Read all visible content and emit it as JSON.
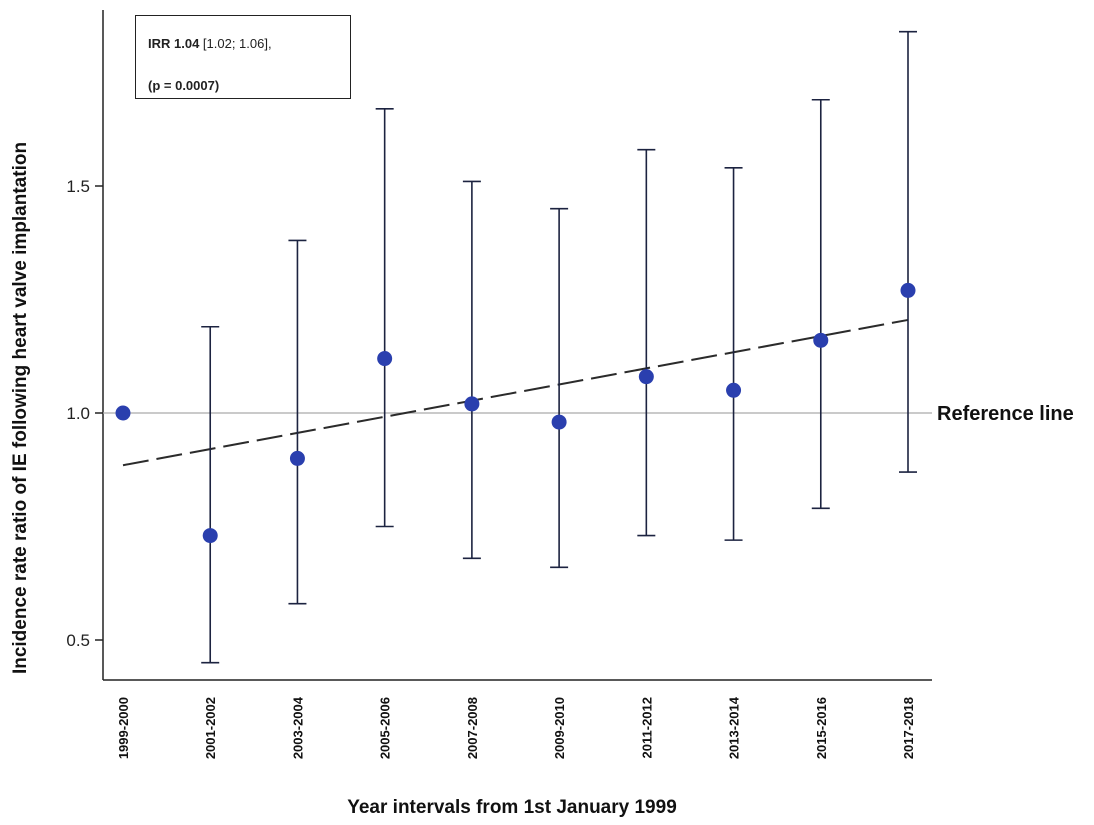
{
  "chart_data": {
    "type": "scatter",
    "xlabel": "Year intervals from 1st January 1999",
    "ylabel": "Incidence rate ratio of IE following heart valve implantation",
    "categories": [
      "1999-2000",
      "2001-2002",
      "2003-2004",
      "2005-2006",
      "2007-2008",
      "2009-2010",
      "2011-2012",
      "2013-2014",
      "2015-2016",
      "2017-2018"
    ],
    "series": [
      {
        "values": [
          1.0,
          0.73,
          0.9,
          1.12,
          1.02,
          0.98,
          1.08,
          1.05,
          1.16,
          1.27
        ],
        "ci_lower": [
          null,
          0.45,
          0.58,
          0.75,
          0.68,
          0.66,
          0.73,
          0.72,
          0.79,
          0.87
        ],
        "ci_upper": [
          null,
          1.19,
          1.38,
          1.67,
          1.51,
          1.45,
          1.58,
          1.54,
          1.69,
          1.84
        ],
        "color": "#2a3fae",
        "errorbar_color": "#1c2340"
      }
    ],
    "trend_line": {
      "start": 0.885,
      "end": 1.205,
      "style": "dashed",
      "color": "#2b2b2b"
    },
    "reference_line": {
      "y": 1.0,
      "label": "Reference line",
      "color": "#aaaaaa"
    },
    "yticks": [
      "0.5",
      "1.0",
      "1.5"
    ],
    "ylim": [
      0.43,
      1.93
    ],
    "grid": false,
    "annotation": {
      "irr_prefix": "IRR 1.04",
      "irr_ci": " [1.02; 1.06],",
      "p_value": "(p = 0.0007)"
    }
  }
}
